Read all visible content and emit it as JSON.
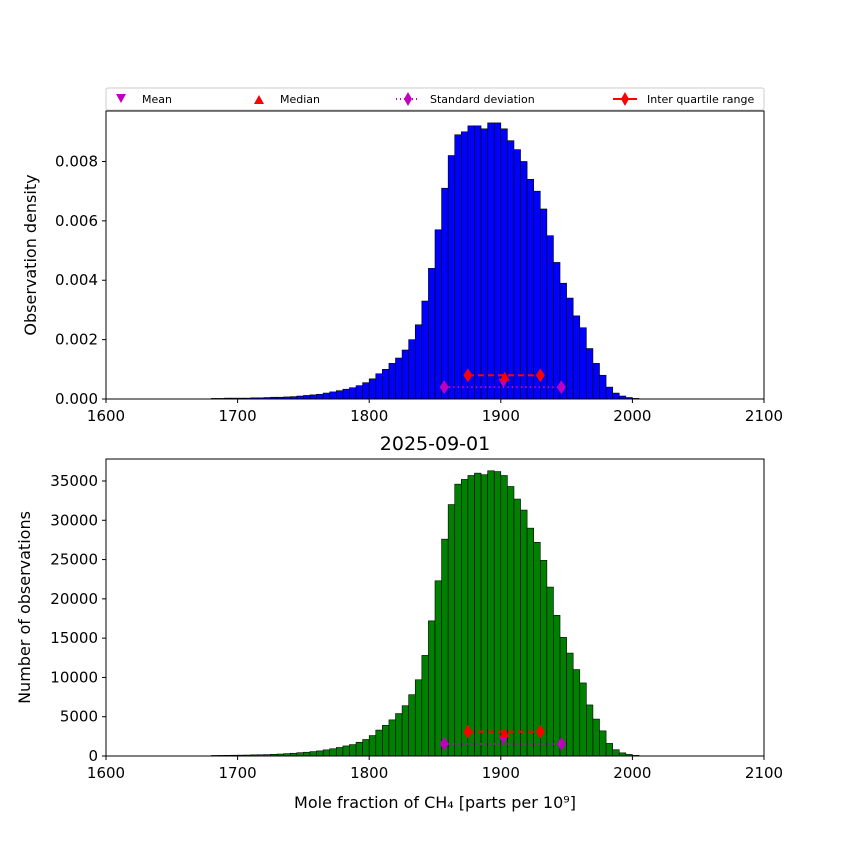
{
  "legend": {
    "mean": "Mean",
    "median": "Median",
    "std": "Standard deviation",
    "iqr": "Inter quartile range"
  },
  "colors": {
    "top_bars": "#0000ff",
    "bottom_bars": "#008000",
    "mean_median": "#ff0000",
    "std": "#bf00bf",
    "iqr": "#ff0000"
  },
  "chart_data": [
    {
      "type": "bar",
      "title": "",
      "xlabel": "",
      "ylabel": "Observation density",
      "xlim": [
        1600,
        2100
      ],
      "ylim": [
        0,
        0.0097
      ],
      "xticks": [
        "1600",
        "1700",
        "1800",
        "1900",
        "2000",
        "2100"
      ],
      "yticks": [
        "0.000",
        "0.002",
        "0.004",
        "0.006",
        "0.008"
      ],
      "ytick_values": [
        0,
        0.002,
        0.004,
        0.006,
        0.008
      ],
      "bin_start": 1680,
      "bin_width": 5,
      "values": [
        2e-05,
        2e-05,
        3e-05,
        3e-05,
        3e-05,
        3e-05,
        4e-05,
        4e-05,
        5e-05,
        6e-05,
        6e-05,
        7e-05,
        8e-05,
        0.0001,
        0.00012,
        0.00014,
        0.00016,
        0.0002,
        0.00024,
        0.00028,
        0.00033,
        0.00038,
        0.00045,
        0.00055,
        0.00068,
        0.00085,
        0.001,
        0.0012,
        0.00138,
        0.00165,
        0.002,
        0.0025,
        0.0033,
        0.0044,
        0.0057,
        0.0071,
        0.0082,
        0.0089,
        0.009,
        0.0092,
        0.0092,
        0.0091,
        0.0093,
        0.0093,
        0.0091,
        0.0087,
        0.0084,
        0.008,
        0.0074,
        0.007,
        0.0064,
        0.0055,
        0.0046,
        0.0039,
        0.0034,
        0.0028,
        0.0024,
        0.0017,
        0.0012,
        0.0008,
        0.0004,
        0.0002,
        0.0001,
        5e-05,
        2e-05
      ],
      "stats": {
        "mean": 1902,
        "mean_y": 0.00055,
        "median": 1903,
        "median_y": 0.00075,
        "std_range": [
          1857,
          1946
        ],
        "std_y": 0.0004,
        "iqr_range": [
          1875,
          1930
        ],
        "iqr_y": 0.0008
      }
    },
    {
      "type": "bar",
      "title": "2025-09-01",
      "xlabel": "Mole fraction of CH₄ [parts per 10⁹]",
      "ylabel": "Number of observations",
      "xlim": [
        1600,
        2100
      ],
      "ylim": [
        0,
        37800
      ],
      "xticks": [
        "1600",
        "1700",
        "1800",
        "1900",
        "2000",
        "2100"
      ],
      "yticks": [
        "0",
        "5000",
        "10000",
        "15000",
        "20000",
        "25000",
        "30000",
        "35000"
      ],
      "ytick_values": [
        0,
        5000,
        10000,
        15000,
        20000,
        25000,
        30000,
        35000
      ],
      "bin_start": 1680,
      "bin_width": 5,
      "values": [
        70,
        80,
        90,
        100,
        110,
        120,
        150,
        160,
        180,
        220,
        250,
        300,
        350,
        420,
        480,
        560,
        650,
        780,
        920,
        1080,
        1280,
        1450,
        1750,
        2100,
        2600,
        3300,
        3900,
        4600,
        5400,
        6400,
        7800,
        9700,
        12800,
        17200,
        22300,
        27600,
        32000,
        34600,
        35200,
        35700,
        36000,
        35800,
        36300,
        36200,
        35700,
        34300,
        32700,
        31300,
        29000,
        27200,
        24900,
        21500,
        17900,
        15100,
        13100,
        11000,
        9300,
        6500,
        4700,
        3200,
        1600,
        800,
        400,
        200,
        80
      ],
      "stats": {
        "mean": 1902,
        "mean_y": 2100,
        "median": 1903,
        "median_y": 2900,
        "std_range": [
          1857,
          1946
        ],
        "std_y": 1550,
        "iqr_range": [
          1875,
          1930
        ],
        "iqr_y": 3100
      }
    }
  ]
}
